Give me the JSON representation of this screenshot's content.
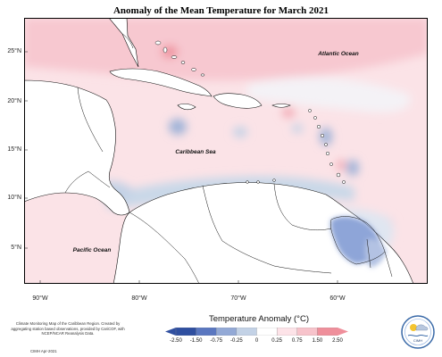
{
  "title": "Anomaly of the Mean Temperature for March 2021",
  "y_ticks": [
    "25°N",
    "20°N",
    "15°N",
    "10°N",
    "5°N"
  ],
  "x_ticks": [
    "90°W",
    "80°W",
    "70°W",
    "60°W"
  ],
  "labels": {
    "atlantic": "Atlantic Ocean",
    "caribbean": "Caribbean Sea",
    "pacific": "Pacific Ocean"
  },
  "footnote": "Climate Monitoring Map of the Caribbean Region. Created by aggregating station based observations, provided by CariCOF, with NCEP/NCAR Reanalysis Data.",
  "credit": "CIMH Apr-2021",
  "colorbar": {
    "title": "Temperature Anomaly (°C)",
    "labels": [
      "-2.50",
      "-1.50",
      "-0.75",
      "-0.25",
      "0",
      "0.25",
      "0.75",
      "1.50",
      "2.50"
    ],
    "colors": [
      "#2f4fa0",
      "#5a77c0",
      "#93a9d6",
      "#c3d2e6",
      "#ffffff",
      "#fde3e8",
      "#f7c3cb",
      "#ef8f9b"
    ]
  },
  "logo": {
    "text": "CIMH"
  },
  "colors": {
    "land": "#ffffff",
    "ocean_warm": "#fbd9df",
    "ocean_cool": "#c6d6e6"
  }
}
